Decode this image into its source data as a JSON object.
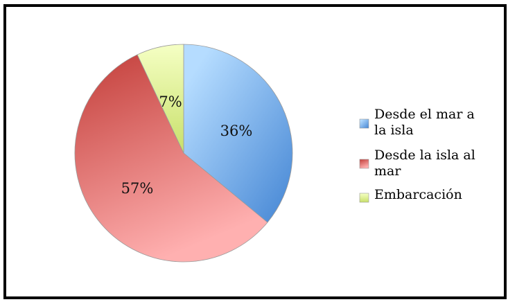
{
  "chart_data": {
    "type": "pie",
    "categories": [
      "Desde el mar a la isla",
      "Desde la isla al mar",
      "Embarcación"
    ],
    "values": [
      36,
      57,
      7
    ],
    "data_labels": [
      "36%",
      "57%",
      "7%"
    ],
    "legend_lines": [
      [
        "Desde el mar a",
        "la isla"
      ],
      [
        "Desde la isla al",
        "mar"
      ],
      [
        "Embarcación"
      ]
    ],
    "colors": [
      {
        "light": "#b5dcff",
        "dark": "#4a8ad6"
      },
      {
        "light": "#ffb0b0",
        "dark": "#c94a46"
      },
      {
        "light": "#f5ffc4",
        "dark": "#c8e06a"
      }
    ],
    "start_angle": "top",
    "direction": "clockwise",
    "legend": "right"
  }
}
